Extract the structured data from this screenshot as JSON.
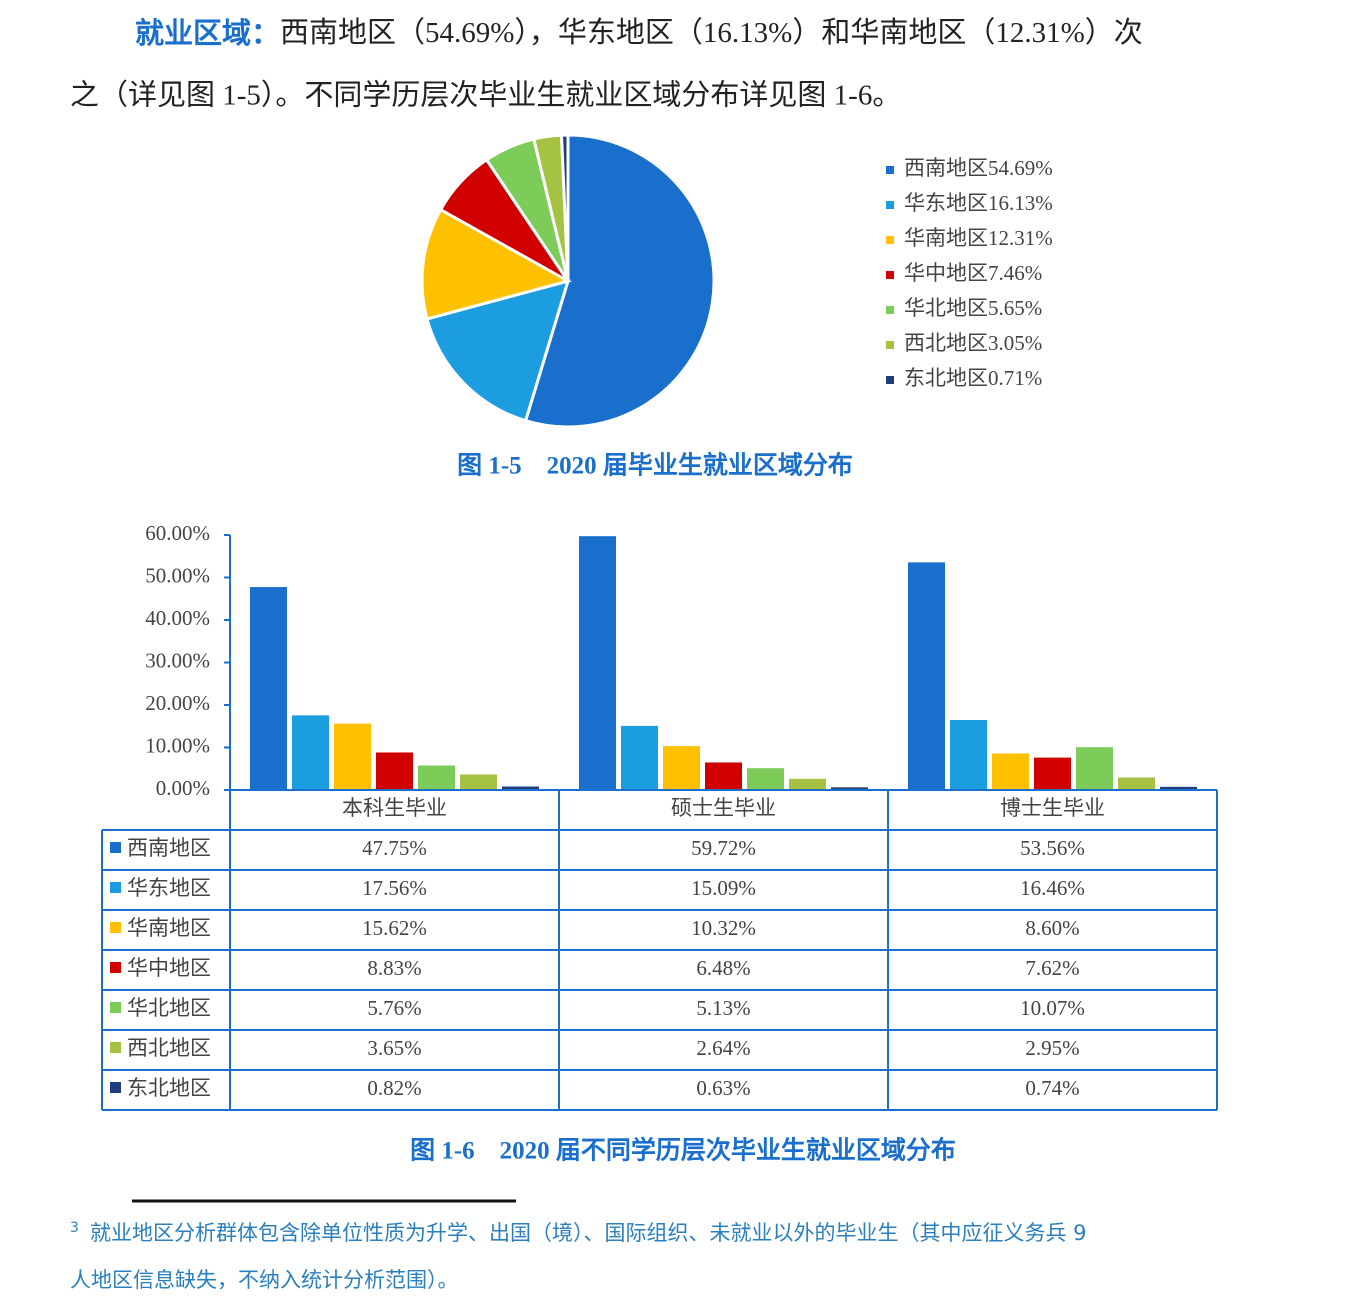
{
  "paragraph": {
    "lead": "就业区域：",
    "line1": "西南地区（54.69%），华东地区（16.13%）和华南地区（12.31%）次",
    "line2": "之（详见图 1-5）。不同学历层次毕业生就业区域分布详见图 1-6。"
  },
  "chart_data": [
    {
      "type": "pie",
      "title": "图 1-5　2020 届毕业生就业区域分布",
      "categories": [
        "西南地区",
        "华东地区",
        "华南地区",
        "华中地区",
        "华北地区",
        "西北地区",
        "东北地区"
      ],
      "values": [
        54.69,
        16.13,
        12.31,
        7.46,
        5.65,
        3.05,
        0.71
      ],
      "value_labels": [
        "54.69%",
        "16.13%",
        "12.31%",
        "7.46%",
        "5.65%",
        "3.05%",
        "0.71%"
      ],
      "colors": [
        "#1a6fcc",
        "#1b9de0",
        "#ffc000",
        "#d00000",
        "#7dcc5a",
        "#a5c243",
        "#1f3e7c"
      ],
      "legend": "right"
    },
    {
      "type": "bar",
      "title": "图 1-6　2020 届不同学历层次毕业生就业区域分布",
      "categories": [
        "本科生毕业",
        "硕士生毕业",
        "博士生毕业"
      ],
      "series": [
        {
          "name": "西南地区",
          "color": "#1a6fcc",
          "values": [
            47.75,
            59.72,
            53.56
          ],
          "value_labels": [
            "47.75%",
            "59.72%",
            "53.56%"
          ]
        },
        {
          "name": "华东地区",
          "color": "#1b9de0",
          "values": [
            17.56,
            15.09,
            16.46
          ],
          "value_labels": [
            "17.56%",
            "15.09%",
            "16.46%"
          ]
        },
        {
          "name": "华南地区",
          "color": "#ffc000",
          "values": [
            15.62,
            10.32,
            8.6
          ],
          "value_labels": [
            "15.62%",
            "10.32%",
            "8.60%"
          ]
        },
        {
          "name": "华中地区",
          "color": "#d00000",
          "values": [
            8.83,
            6.48,
            7.62
          ],
          "value_labels": [
            "8.83%",
            "6.48%",
            "7.62%"
          ]
        },
        {
          "name": "华北地区",
          "color": "#7dcc5a",
          "values": [
            5.76,
            5.13,
            10.07
          ],
          "value_labels": [
            "5.76%",
            "5.13%",
            "10.07%"
          ]
        },
        {
          "name": "西北地区",
          "color": "#a5c243",
          "values": [
            3.65,
            2.64,
            2.95
          ],
          "value_labels": [
            "3.65%",
            "2.64%",
            "2.95%"
          ]
        },
        {
          "name": "东北地区",
          "color": "#1f3e7c",
          "values": [
            0.82,
            0.63,
            0.74
          ],
          "value_labels": [
            "0.82%",
            "0.63%",
            "0.74%"
          ]
        }
      ],
      "ylim": [
        0,
        60
      ],
      "yticks": [
        {
          "value": 0,
          "label": "0.00%"
        },
        {
          "value": 10,
          "label": "10.00%"
        },
        {
          "value": 20,
          "label": "20.00%"
        },
        {
          "value": 30,
          "label": "30.00%"
        },
        {
          "value": 40,
          "label": "40.00%"
        },
        {
          "value": 50,
          "label": "50.00%"
        },
        {
          "value": 60,
          "label": "60.00%"
        }
      ],
      "grid": false,
      "data_table": true
    }
  ],
  "footnote": {
    "mark": "3",
    "line1": "就业地区分析群体包含除单位性质为升学、出国（境）、国际组织、未就业以外的毕业生（其中应征义务兵 9",
    "line2": "人地区信息缺失，不纳入统计分析范围）。"
  }
}
